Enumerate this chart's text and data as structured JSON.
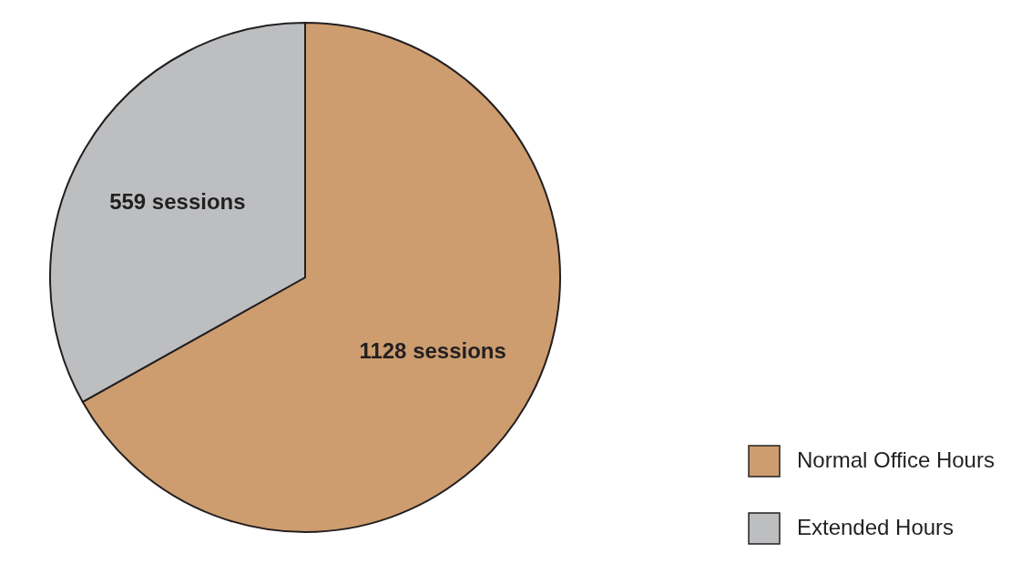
{
  "chart_data": {
    "type": "pie",
    "categories": [
      "Normal Office Hours",
      "Extended Hours"
    ],
    "values": [
      1128,
      559
    ],
    "colors": [
      "#cd9d6f",
      "#bcbec0"
    ],
    "value_labels": [
      "1128 sessions",
      "559 sessions"
    ],
    "legend": "bottom right"
  }
}
